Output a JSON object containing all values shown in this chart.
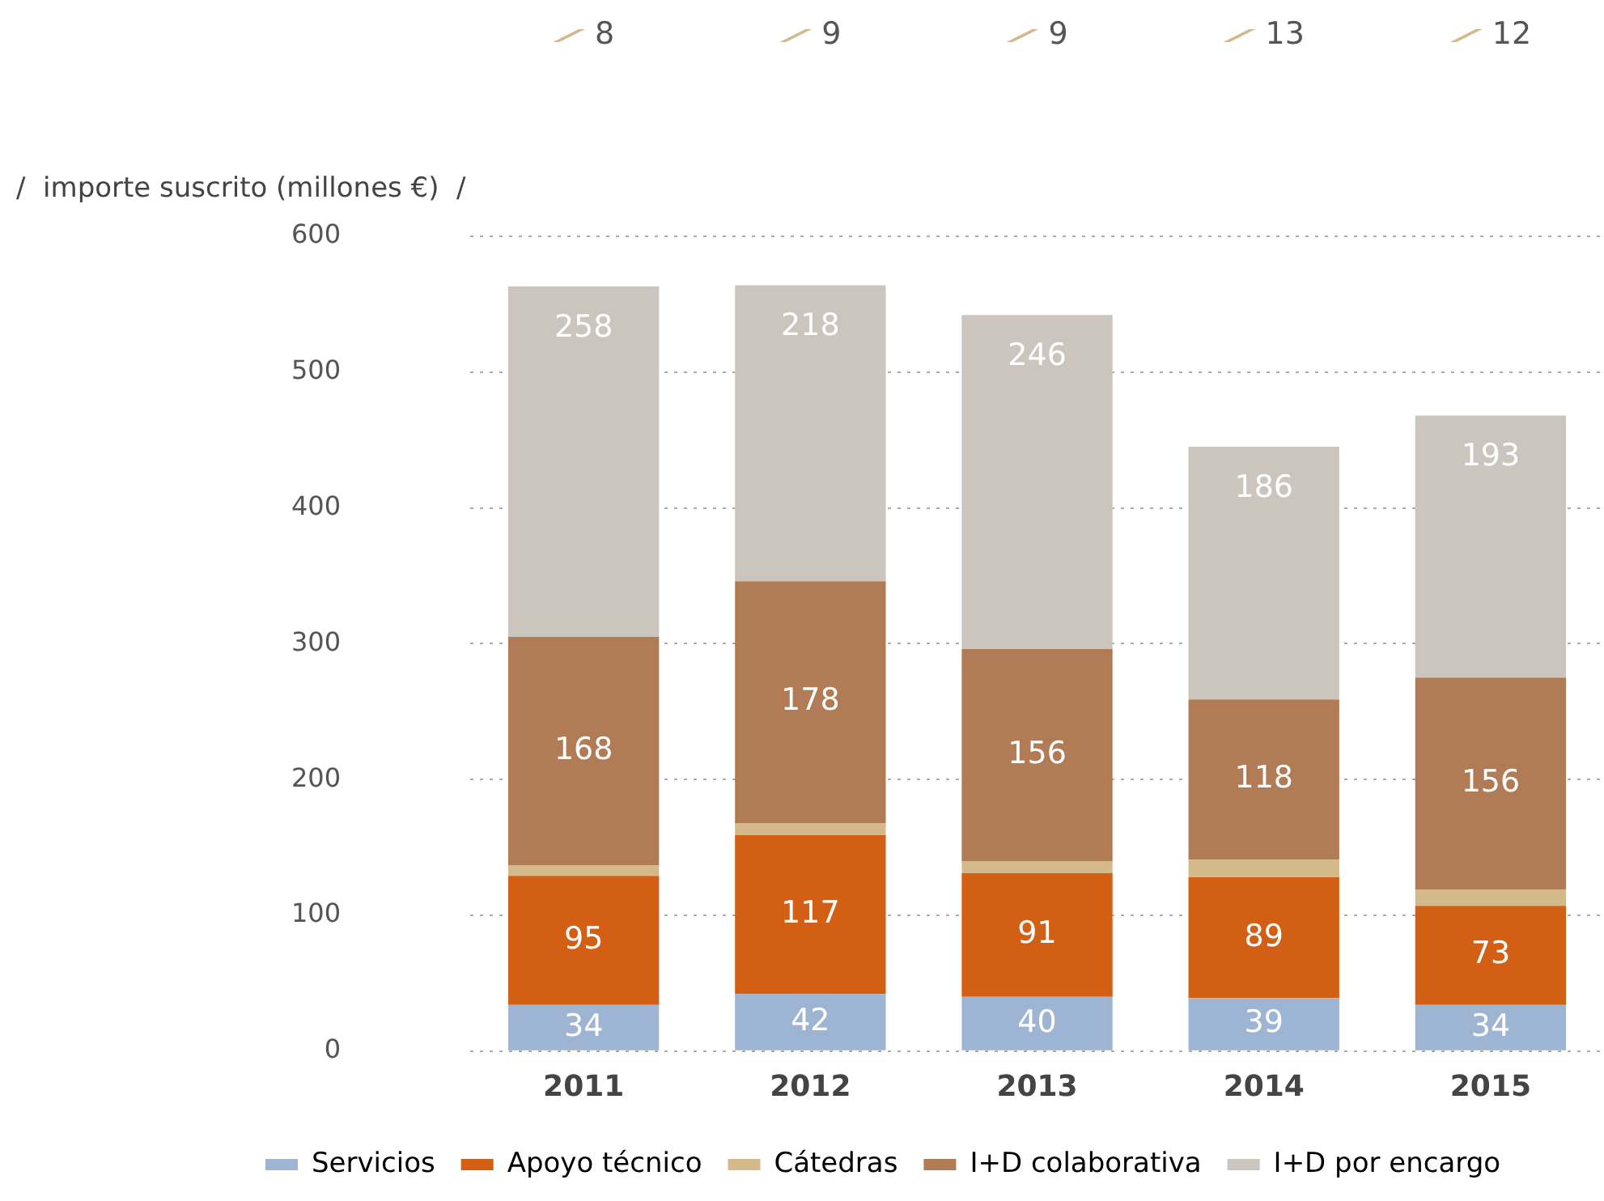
{
  "chart_data": {
    "type": "bar",
    "stacked": true,
    "ylabel": "/  importe suscrito (millones €)  /",
    "categories": [
      "2011",
      "2012",
      "2013",
      "2014",
      "2015"
    ],
    "series": [
      {
        "name": "Servicios",
        "color": "#9db5d3",
        "values": [
          34,
          42,
          40,
          39,
          34
        ]
      },
      {
        "name": "Apoyo técnico",
        "color": "#d35f15",
        "values": [
          95,
          117,
          91,
          89,
          73
        ]
      },
      {
        "name": "Cátedras",
        "color": "#d4b98a",
        "values": [
          8,
          9,
          9,
          13,
          12
        ]
      },
      {
        "name": "I+D colaborativa",
        "color": "#b07b55",
        "values": [
          168,
          178,
          156,
          118,
          156
        ]
      },
      {
        "name": "I+D por encargo",
        "color": "#cbc5bd",
        "values": [
          258,
          218,
          246,
          186,
          193
        ]
      }
    ],
    "ylim": [
      0,
      600
    ],
    "yticks": [
      0,
      100,
      200,
      300,
      400,
      500,
      600
    ],
    "grid": "y",
    "legend": "bottom",
    "data_labels": true
  }
}
